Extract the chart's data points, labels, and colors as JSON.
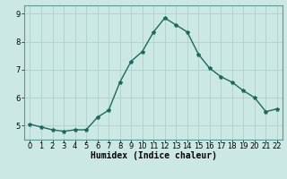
{
  "x": [
    0,
    1,
    2,
    3,
    4,
    5,
    6,
    7,
    8,
    9,
    10,
    11,
    12,
    13,
    14,
    15,
    16,
    17,
    18,
    19,
    20,
    21,
    22
  ],
  "y": [
    5.05,
    4.95,
    4.85,
    4.8,
    4.85,
    4.85,
    5.3,
    5.55,
    6.55,
    7.3,
    7.65,
    8.35,
    8.85,
    8.6,
    8.35,
    7.55,
    7.05,
    6.75,
    6.55,
    6.25,
    6.0,
    5.5,
    5.6
  ],
  "line_color": "#1a6b5a",
  "marker": "*",
  "marker_size": 3,
  "bg_color": "#cce8e4",
  "grid_color": "#aed0cc",
  "xlabel": "Humidex (Indice chaleur)",
  "xlim": [
    -0.5,
    22.5
  ],
  "ylim": [
    4.5,
    9.3
  ],
  "yticks": [
    5,
    6,
    7,
    8,
    9
  ],
  "xticks": [
    0,
    1,
    2,
    3,
    4,
    5,
    6,
    7,
    8,
    9,
    10,
    11,
    12,
    13,
    14,
    15,
    16,
    17,
    18,
    19,
    20,
    21,
    22
  ],
  "xlabel_fontsize": 7,
  "tick_fontsize": 6,
  "line_width": 1.0,
  "spine_color": "#5a9a90"
}
